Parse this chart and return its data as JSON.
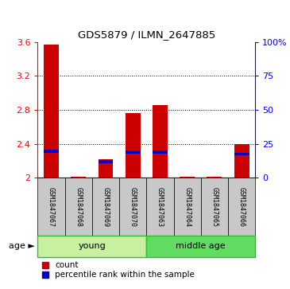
{
  "title": "GDS5879 / ILMN_2647885",
  "samples": [
    "GSM1847067",
    "GSM1847068",
    "GSM1847069",
    "GSM1847070",
    "GSM1847063",
    "GSM1847064",
    "GSM1847065",
    "GSM1847066"
  ],
  "red_values": [
    3.57,
    2.01,
    2.22,
    2.76,
    2.86,
    2.01,
    2.01,
    2.4
  ],
  "blue_values": [
    2.31,
    0.0,
    2.19,
    2.3,
    2.3,
    0.0,
    0.0,
    2.28
  ],
  "ylim": [
    2.0,
    3.6
  ],
  "yticks_left": [
    2.0,
    2.4,
    2.8,
    3.2,
    3.6
  ],
  "ytick_labels_left": [
    "2",
    "2.4",
    "2.8",
    "3.2",
    "3.6"
  ],
  "yticks_right_pct": [
    0,
    25,
    50,
    75,
    100
  ],
  "ytick_labels_right": [
    "0",
    "25",
    "50",
    "75",
    "100%"
  ],
  "groups": [
    {
      "label": "young",
      "start": 0,
      "end": 4,
      "color": "#C8F0A0"
    },
    {
      "label": "middle age",
      "start": 4,
      "end": 8,
      "color": "#60DD60"
    }
  ],
  "age_label": "age",
  "legend_red": "count",
  "legend_blue": "percentile rank within the sample",
  "bar_width": 0.55,
  "red_color": "#CC0000",
  "blue_color": "#0000CC",
  "bar_bg_color": "#C8C8C8",
  "group_border_color": "#33BB33"
}
